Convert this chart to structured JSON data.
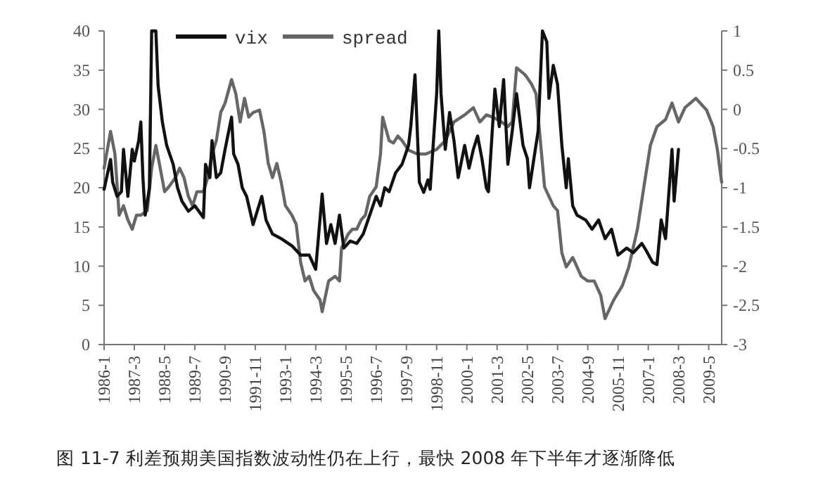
{
  "chart_data": {
    "type": "line",
    "legend": "top",
    "annotations": [
      "图 11-7   利差预期美国指数波动性仍在上行，最快 2008 年下半年才逐渐降低"
    ],
    "xlim": [
      "1986-01",
      "2009-11"
    ],
    "xticks": [
      {
        "value": "1986-01",
        "label": "1986-1"
      },
      {
        "value": "1987-03",
        "label": "1987-3"
      },
      {
        "value": "1988-05",
        "label": "1988-5"
      },
      {
        "value": "1989-07",
        "label": "1989-7"
      },
      {
        "value": "1990-09",
        "label": "1990-9"
      },
      {
        "value": "1991-11",
        "label": "1991-11"
      },
      {
        "value": "1993-01",
        "label": "1993-1"
      },
      {
        "value": "1994-03",
        "label": "1994-3"
      },
      {
        "value": "1995-05",
        "label": "1995-5"
      },
      {
        "value": "1996-07",
        "label": "1996-7"
      },
      {
        "value": "1997-09",
        "label": "1997-9"
      },
      {
        "value": "1998-11",
        "label": "1998-11"
      },
      {
        "value": "2000-01",
        "label": "2000-1"
      },
      {
        "value": "2001-03",
        "label": "2001-3"
      },
      {
        "value": "2002-05",
        "label": "2002-5"
      },
      {
        "value": "2003-07",
        "label": "2003-7"
      },
      {
        "value": "2004-09",
        "label": "2004-9"
      },
      {
        "value": "2005-11",
        "label": "2005-11"
      },
      {
        "value": "2007-01",
        "label": "2007-1"
      },
      {
        "value": "2008-03",
        "label": "2008-3"
      },
      {
        "value": "2009-05",
        "label": "2009-5"
      }
    ],
    "ylim": [
      0,
      40
    ],
    "yticks": [
      0,
      5,
      10,
      15,
      20,
      25,
      30,
      35,
      40
    ],
    "y2lim": [
      -3,
      1
    ],
    "y2ticks": [
      -3,
      -2.5,
      -2,
      -1.5,
      -1,
      -0.5,
      0,
      0.5,
      1
    ],
    "series": [
      {
        "name": "vix",
        "color": "#111111",
        "x": [
          "1986-01",
          "1986-04",
          "1986-05",
          "1986-07",
          "1986-09",
          "1986-10",
          "1986-12",
          "1987-02",
          "1987-03",
          "1987-05",
          "1987-06",
          "1987-07",
          "1987-08",
          "1987-10",
          "1987-11",
          "1988-01",
          "1988-02",
          "1988-04",
          "1988-06",
          "1988-09",
          "1988-11",
          "1989-01",
          "1989-04",
          "1989-07",
          "1989-11",
          "1989-12",
          "1990-02",
          "1990-03",
          "1990-05",
          "1990-07",
          "1990-09",
          "1990-12",
          "1991-01",
          "1991-03",
          "1991-05",
          "1991-07",
          "1991-09",
          "1991-10",
          "1992-02",
          "1992-04",
          "1992-07",
          "1992-11",
          "1993-04",
          "1993-08",
          "1993-12",
          "1994-03",
          "1994-06",
          "1994-08",
          "1994-10",
          "1994-12",
          "1995-02",
          "1995-04",
          "1995-07",
          "1995-10",
          "1996-01",
          "1996-04",
          "1996-07",
          "1996-09",
          "1996-11",
          "1997-01",
          "1997-04",
          "1997-07",
          "1997-10",
          "1997-11",
          "1998-01",
          "1998-03",
          "1998-05",
          "1998-07",
          "1998-08",
          "1998-11",
          "1998-12",
          "1999-01",
          "1999-03",
          "1999-05",
          "1999-07",
          "1999-09",
          "1999-12",
          "2000-02",
          "2000-04",
          "2000-06",
          "2000-08",
          "2000-10",
          "2000-11",
          "2001-02",
          "2001-04",
          "2001-06",
          "2001-08",
          "2001-10",
          "2001-12",
          "2002-03",
          "2002-05",
          "2002-06",
          "2002-08",
          "2002-10",
          "2002-12",
          "2003-02",
          "2003-03",
          "2003-05",
          "2003-07",
          "2003-09",
          "2003-11",
          "2003-12",
          "2004-02",
          "2004-04",
          "2004-08",
          "2004-11",
          "2005-02",
          "2005-05",
          "2005-08",
          "2005-11",
          "2006-03",
          "2006-06",
          "2006-10",
          "2006-12",
          "2007-03",
          "2007-05",
          "2007-07",
          "2007-09",
          "2007-12",
          "2008-01",
          "2008-03"
        ],
        "values": [
          19.8,
          23.6,
          20.7,
          18.9,
          19.5,
          24.9,
          18.9,
          24.9,
          23.4,
          26,
          28.4,
          21.3,
          16.5,
          20,
          40,
          40,
          33,
          28.4,
          25.4,
          23,
          20,
          18.3,
          17,
          17.7,
          16.2,
          23,
          21.3,
          26,
          21.3,
          21.9,
          24.9,
          29,
          24.3,
          23,
          20,
          18.9,
          16.5,
          15.3,
          18.9,
          15.9,
          14.1,
          13.5,
          12.6,
          11.4,
          11.4,
          9.6,
          19.2,
          12.9,
          15.3,
          12.9,
          16.5,
          12.3,
          13.2,
          12.9,
          14.1,
          16.5,
          18.9,
          17.7,
          20,
          19.5,
          21.9,
          23,
          25.4,
          27.8,
          34.4,
          20.7,
          19.4,
          21,
          19.8,
          32,
          40,
          32,
          24.9,
          29.6,
          26,
          21.3,
          25.4,
          22.5,
          24.9,
          26.6,
          23.7,
          20,
          19.5,
          32.6,
          27.8,
          33.8,
          23,
          27.2,
          32,
          25.4,
          23.7,
          20,
          23.7,
          27.2,
          40,
          38.6,
          31.4,
          35.6,
          33.2,
          25.4,
          20,
          23.7,
          17.7,
          16.5,
          15.9,
          14.7,
          15.9,
          13.5,
          14.7,
          11.4,
          12.3,
          11.7,
          12.9,
          12,
          10.5,
          10.2,
          15.9,
          13.5,
          24.9,
          18.3,
          24.9
        ]
      },
      {
        "name": "spread",
        "color": "#666666",
        "axis": "y2",
        "x": [
          "1986-01",
          "1986-04",
          "1986-06",
          "1986-08",
          "1986-10",
          "1986-12",
          "1987-02",
          "1987-04",
          "1987-06",
          "1987-09",
          "1987-11",
          "1988-01",
          "1988-03",
          "1988-05",
          "1988-07",
          "1988-10",
          "1988-12",
          "1989-02",
          "1989-04",
          "1989-06",
          "1989-08",
          "1989-11",
          "1990-01",
          "1990-03",
          "1990-05",
          "1990-07",
          "1990-09",
          "1990-12",
          "1991-02",
          "1991-04",
          "1991-06",
          "1991-08",
          "1991-10",
          "1992-01",
          "1992-03",
          "1992-05",
          "1992-07",
          "1992-09",
          "1992-11",
          "1993-01",
          "1993-04",
          "1993-06",
          "1993-08",
          "1993-10",
          "1993-12",
          "1994-02",
          "1994-05",
          "1994-06",
          "1994-09",
          "1994-12",
          "1995-02",
          "1995-03",
          "1995-06",
          "1995-08",
          "1995-10",
          "1995-12",
          "1996-02",
          "1996-04",
          "1996-07",
          "1996-09",
          "1996-10",
          "1997-01",
          "1997-03",
          "1997-05",
          "1997-07",
          "1997-10",
          "1998-02",
          "1998-06",
          "1998-11",
          "1999-03",
          "1999-07",
          "1999-12",
          "2000-04",
          "2000-07",
          "2000-10",
          "2001-01",
          "2001-05",
          "2001-08",
          "2001-10",
          "2001-12",
          "2002-04",
          "2002-07",
          "2002-09",
          "2002-11",
          "2003-01",
          "2003-05",
          "2003-07",
          "2003-09",
          "2003-11",
          "2004-02",
          "2004-06",
          "2004-09",
          "2004-12",
          "2005-03",
          "2005-05",
          "2005-09",
          "2006-01",
          "2006-04",
          "2006-08",
          "2006-11",
          "2007-02",
          "2007-05",
          "2007-09",
          "2007-12",
          "2008-03",
          "2008-06",
          "2008-11",
          "2009-04",
          "2009-07",
          "2009-09",
          "2009-11"
        ],
        "values": [
          -0.75,
          -0.28,
          -0.57,
          -1.35,
          -1.23,
          -1.41,
          -1.53,
          -1.35,
          -1.35,
          -1.29,
          -0.75,
          -0.46,
          -0.75,
          -1.05,
          -0.99,
          -0.87,
          -0.75,
          -0.87,
          -1.11,
          -1.23,
          -1.05,
          -1.05,
          -0.87,
          -0.57,
          -0.4,
          -0.04,
          0.08,
          0.38,
          0.2,
          -0.16,
          0.14,
          -0.1,
          -0.04,
          -0.01,
          -0.28,
          -0.69,
          -0.87,
          -0.69,
          -0.93,
          -1.23,
          -1.35,
          -1.47,
          -1.95,
          -2.19,
          -2.13,
          -2.31,
          -2.43,
          -2.58,
          -2.19,
          -2.13,
          -2.19,
          -1.77,
          -1.59,
          -1.53,
          -1.53,
          -1.41,
          -1.35,
          -1.11,
          -0.99,
          -0.57,
          -0.1,
          -0.4,
          -0.43,
          -0.34,
          -0.4,
          -0.52,
          -0.57,
          -0.57,
          -0.51,
          -0.4,
          -0.16,
          -0.07,
          0.02,
          -0.16,
          -0.07,
          -0.1,
          -0.16,
          -0.22,
          -0.16,
          0.53,
          0.44,
          0.32,
          0.2,
          -0.4,
          -0.99,
          -1.23,
          -1.29,
          -1.83,
          -2.01,
          -1.89,
          -2.13,
          -2.19,
          -2.19,
          -2.37,
          -2.67,
          -2.43,
          -2.25,
          -2.01,
          -1.53,
          -0.99,
          -0.46,
          -0.22,
          -0.13,
          0.08,
          -0.16,
          0.02,
          0.14,
          -0.01,
          -0.22,
          -0.51,
          -0.93
        ]
      }
    ]
  }
}
